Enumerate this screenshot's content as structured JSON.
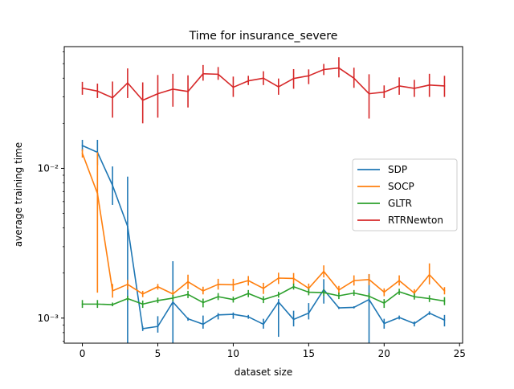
{
  "chart_data": {
    "type": "line",
    "title": "Time for insurance_severe",
    "xlabel": "dataset size",
    "ylabel": "average training time",
    "yscale": "log",
    "xlim": [
      -1.2,
      25.2
    ],
    "ylim": [
      0.00068,
      0.065
    ],
    "x_ticks": [
      0,
      5,
      10,
      15,
      20,
      25
    ],
    "x_tick_labels": [
      "0",
      "5",
      "10",
      "15",
      "20",
      "25"
    ],
    "y_ticks": [
      0.001,
      0.01
    ],
    "y_tick_labels": [
      "10⁻³",
      "10⁻²"
    ],
    "grid": false,
    "legend_position": "center-right",
    "x": [
      0,
      1,
      2,
      3,
      4,
      5,
      6,
      7,
      8,
      9,
      10,
      11,
      12,
      13,
      14,
      15,
      16,
      17,
      18,
      19,
      20,
      21,
      22,
      23,
      24
    ],
    "series": [
      {
        "name": "SDP",
        "color": "#1f77b4",
        "values": [
          0.0142,
          0.0128,
          0.0077,
          0.0041,
          0.00085,
          0.00088,
          0.00128,
          0.00099,
          0.00091,
          0.00105,
          0.00106,
          0.00102,
          0.00091,
          0.00128,
          0.00098,
          0.00108,
          0.00155,
          0.00117,
          0.00118,
          0.00133,
          0.00092,
          0.00101,
          0.00092,
          0.00108,
          0.00097
        ],
        "err_low": [
          0.013,
          0.0105,
          0.0057,
          0.00068,
          0.00082,
          0.0008,
          0.00068,
          0.00096,
          0.00085,
          0.00098,
          0.00099,
          0.00099,
          0.00085,
          0.00075,
          0.00088,
          0.00098,
          0.00125,
          0.00115,
          0.00116,
          0.00068,
          0.00085,
          0.00098,
          0.00088,
          0.00105,
          0.00088
        ],
        "err_high": [
          0.0155,
          0.0155,
          0.0103,
          0.0088,
          0.00088,
          0.00103,
          0.0024,
          0.00101,
          0.00104,
          0.00108,
          0.00109,
          0.00105,
          0.00099,
          0.00134,
          0.00112,
          0.00126,
          0.00182,
          0.00119,
          0.0012,
          0.00196,
          0.00099,
          0.00104,
          0.00095,
          0.00111,
          0.00105
        ]
      },
      {
        "name": "SOCP",
        "color": "#ff7f0e",
        "values": [
          0.0126,
          0.0068,
          0.00152,
          0.00168,
          0.00145,
          0.00162,
          0.00145,
          0.00175,
          0.00152,
          0.00168,
          0.00167,
          0.00178,
          0.00158,
          0.00185,
          0.00184,
          0.00158,
          0.00205,
          0.00154,
          0.00178,
          0.00181,
          0.00149,
          0.00178,
          0.00147,
          0.00195,
          0.00152
        ],
        "err_low": [
          0.0118,
          0.00148,
          0.00137,
          0.00155,
          0.00138,
          0.00155,
          0.00138,
          0.00156,
          0.00144,
          0.00155,
          0.00152,
          0.00165,
          0.00145,
          0.00169,
          0.00169,
          0.00145,
          0.00187,
          0.00145,
          0.00165,
          0.00166,
          0.0014,
          0.00165,
          0.00138,
          0.00168,
          0.00144
        ],
        "err_high": [
          0.0134,
          0.0128,
          0.00169,
          0.0018,
          0.00152,
          0.00169,
          0.00153,
          0.00195,
          0.00162,
          0.00183,
          0.00183,
          0.00191,
          0.00172,
          0.00201,
          0.002,
          0.0017,
          0.00225,
          0.00164,
          0.00193,
          0.00197,
          0.00158,
          0.00193,
          0.00156,
          0.00232,
          0.00161
        ]
      },
      {
        "name": "GLTR",
        "color": "#2ca02c",
        "values": [
          0.00124,
          0.00124,
          0.00123,
          0.00135,
          0.00124,
          0.00131,
          0.00136,
          0.00144,
          0.00127,
          0.00139,
          0.00133,
          0.00146,
          0.00133,
          0.00143,
          0.00162,
          0.00149,
          0.00148,
          0.00141,
          0.00147,
          0.0014,
          0.00126,
          0.0015,
          0.00139,
          0.00135,
          0.0013
        ],
        "err_low": [
          0.00117,
          0.00117,
          0.0012,
          0.0013,
          0.00117,
          0.00126,
          0.0013,
          0.00136,
          0.00118,
          0.00132,
          0.00127,
          0.00138,
          0.00126,
          0.00137,
          0.00155,
          0.00142,
          0.00141,
          0.00134,
          0.00141,
          0.00134,
          0.00117,
          0.00143,
          0.00133,
          0.00128,
          0.00122
        ],
        "err_high": [
          0.00132,
          0.00132,
          0.00127,
          0.00141,
          0.00131,
          0.00137,
          0.00143,
          0.00152,
          0.00135,
          0.00147,
          0.00139,
          0.00154,
          0.0014,
          0.0015,
          0.0017,
          0.00157,
          0.00155,
          0.00148,
          0.00154,
          0.00147,
          0.00134,
          0.00157,
          0.00146,
          0.00142,
          0.00138
        ]
      },
      {
        "name": "RTRNewton",
        "color": "#d62728",
        "values": [
          0.0343,
          0.0328,
          0.0296,
          0.0372,
          0.0285,
          0.0315,
          0.0338,
          0.0326,
          0.0428,
          0.0425,
          0.0348,
          0.0384,
          0.04,
          0.035,
          0.0398,
          0.0415,
          0.0457,
          0.0468,
          0.04,
          0.0315,
          0.0323,
          0.0355,
          0.0342,
          0.036,
          0.0355
        ],
        "err_low": [
          0.031,
          0.0295,
          0.0218,
          0.0295,
          0.02,
          0.0218,
          0.0258,
          0.0255,
          0.0385,
          0.039,
          0.03,
          0.036,
          0.036,
          0.031,
          0.034,
          0.0365,
          0.042,
          0.0405,
          0.0345,
          0.0215,
          0.0295,
          0.031,
          0.03,
          0.03,
          0.03
        ],
        "err_high": [
          0.0378,
          0.0368,
          0.038,
          0.0465,
          0.0375,
          0.042,
          0.0428,
          0.0418,
          0.049,
          0.0475,
          0.041,
          0.0415,
          0.0445,
          0.0398,
          0.046,
          0.0458,
          0.0498,
          0.0552,
          0.047,
          0.0425,
          0.0358,
          0.0405,
          0.039,
          0.0428,
          0.0415
        ]
      }
    ]
  }
}
